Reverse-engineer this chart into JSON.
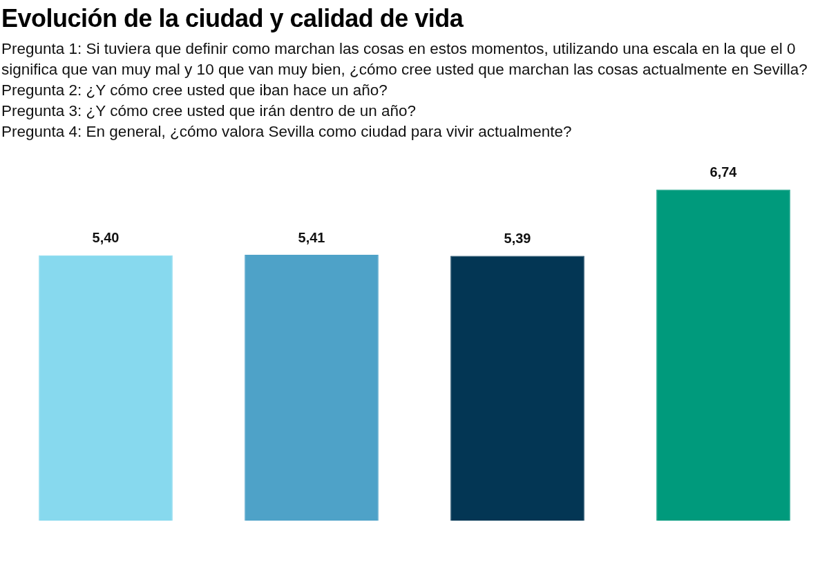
{
  "chart_data": {
    "type": "bar",
    "title": "Evolución de la ciudad y calidad de vida",
    "subtitle": "Pregunta 1: Si tuviera que definir como marchan las cosas en estos momentos, utilizando una escala en la que el 0 significa que van muy mal y 10 que van muy bien, ¿cómo cree usted que marchan las cosas actualmente en Sevilla?\nPregunta 2: ¿Y cómo cree usted que iban hace un año?\nPregunta 3: ¿Y cómo cree usted que irán dentro de un año?\nPregunta 4: En general, ¿cómo valora Sevilla como ciudad para vivir actualmente?",
    "categories": [
      null,
      null,
      null,
      null
    ],
    "values": [
      5.4,
      5.41,
      5.39,
      6.74
    ],
    "colors": [
      "#87d9ee",
      "#4ea2c8",
      "#033654",
      "#009a7c"
    ],
    "value_labels": [
      "5,40",
      "5,41",
      "5,39",
      "6,74"
    ],
    "legend": false
  }
}
